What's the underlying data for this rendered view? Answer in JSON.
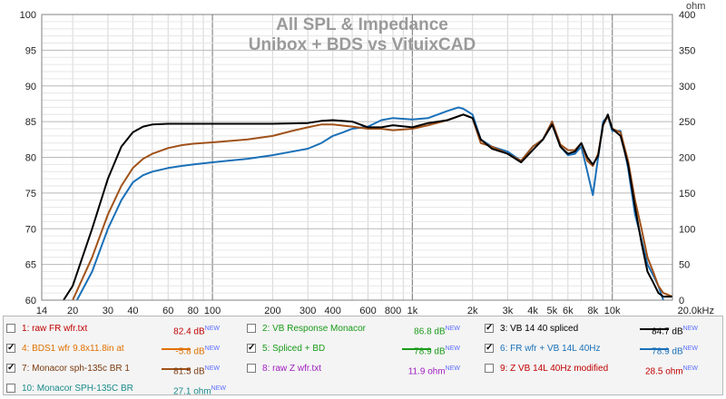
{
  "chart_data": {
    "type": "line",
    "title": "All SPL & Impedance",
    "subtitle": "Unibox + BDS vs VituixCAD",
    "x_scale": "log",
    "xlim": [
      14,
      20000
    ],
    "ylim": [
      60,
      100
    ],
    "y2lim": [
      0,
      400
    ],
    "y2label": "ohm",
    "grid": true,
    "x_tick_labels": [
      "14",
      "20",
      "30",
      "40",
      "60",
      "80",
      "100",
      "200",
      "300",
      "400",
      "600",
      "800",
      "1k",
      "2k",
      "3k",
      "4k",
      "5k",
      "6k",
      "8k",
      "10k",
      "20.0kHz"
    ],
    "y_tick_labels": [
      "60",
      "65",
      "70",
      "75",
      "80",
      "85",
      "90",
      "95",
      "100"
    ],
    "y2_tick_labels": [
      "0",
      "50",
      "100",
      "150",
      "200",
      "250",
      "300",
      "350",
      "400"
    ],
    "series": [
      {
        "name": "3: VB 14 40 spliced",
        "color": "#000000",
        "x": [
          18,
          20,
          25,
          30,
          35,
          40,
          45,
          50,
          60,
          70,
          100,
          150,
          200,
          300,
          350,
          400,
          500,
          600,
          700,
          800,
          1000,
          1200,
          1500,
          1800,
          2000,
          2200,
          2500,
          3000,
          3500,
          4000,
          4500,
          5000,
          5500,
          6000,
          6500,
          7000,
          7500,
          8000,
          8500,
          9000,
          9500,
          10000,
          11000,
          12000,
          13000,
          14000,
          15000,
          16000,
          17000,
          18000,
          20000
        ],
        "y": [
          60,
          62,
          70,
          77,
          81.5,
          83.5,
          84.3,
          84.6,
          84.7,
          84.7,
          84.7,
          84.7,
          84.7,
          84.8,
          85.1,
          85.2,
          85,
          84.2,
          84.2,
          84.5,
          84.2,
          84.8,
          85.2,
          86.0,
          85.5,
          82.5,
          81.2,
          80.5,
          79.3,
          81,
          82.5,
          84.6,
          81.5,
          80.5,
          80.8,
          82,
          80,
          79,
          80.2,
          84.6,
          86.0,
          84,
          83,
          79,
          73,
          68,
          64,
          62.5,
          61,
          60.5,
          60.5
        ]
      },
      {
        "name": "7: Monacor sph-135c BR 1",
        "color": "#a0521a",
        "x": [
          20,
          25,
          30,
          35,
          40,
          45,
          50,
          60,
          70,
          80,
          100,
          150,
          200,
          250,
          300,
          350,
          400,
          500,
          600,
          700,
          800,
          1000,
          1200,
          1500,
          1800,
          2000,
          2200,
          2500,
          3000,
          3500,
          4000,
          4500,
          5000,
          5500,
          6000,
          6500,
          7000,
          7500,
          8000,
          8500,
          9000,
          9500,
          10000,
          11000,
          12000,
          13000,
          14000,
          15000,
          16000,
          17000,
          18000,
          20000
        ],
        "y": [
          60,
          66,
          72,
          76,
          78.5,
          79.8,
          80.5,
          81.3,
          81.7,
          81.9,
          82.1,
          82.5,
          83,
          83.7,
          84.2,
          84.6,
          84.6,
          84.3,
          84,
          84,
          83.8,
          84,
          84.5,
          85.2,
          86.0,
          85.5,
          82,
          81.5,
          80.5,
          79.5,
          81.5,
          82.5,
          85,
          81.8,
          81,
          81,
          82,
          79.5,
          78.8,
          80.5,
          84.5,
          85.8,
          84,
          83.5,
          79.5,
          74,
          70,
          66,
          64,
          62,
          61,
          60.5
        ]
      },
      {
        "name": "6: FR wfr + VB 14L 40Hz",
        "color": "#1a70b8",
        "x": [
          21,
          25,
          30,
          35,
          40,
          45,
          50,
          60,
          70,
          80,
          100,
          150,
          200,
          250,
          300,
          350,
          400,
          450,
          500,
          600,
          700,
          800,
          1000,
          1200,
          1500,
          1700,
          1800,
          2000,
          2200,
          2500,
          3000,
          3500,
          4000,
          4500,
          5000,
          5500,
          6000,
          6500,
          7000,
          7500,
          8000,
          8500,
          9000,
          9500,
          10000,
          11000,
          12000,
          13000,
          14000,
          15000,
          16000,
          17000,
          18000
        ],
        "y": [
          60,
          64,
          70,
          74,
          76.5,
          77.5,
          78,
          78.5,
          78.8,
          79,
          79.3,
          79.8,
          80.3,
          80.8,
          81.2,
          82,
          83,
          83.5,
          84,
          84.3,
          85.2,
          85.5,
          85.3,
          85.5,
          86.5,
          87.0,
          86.8,
          86,
          82.5,
          81.5,
          80.8,
          79.5,
          81.5,
          82.5,
          85,
          81.5,
          80.3,
          80.5,
          81.5,
          78,
          74.7,
          80,
          85,
          85.7,
          83.7,
          83.7,
          78.5,
          72,
          68.5,
          65,
          63.5,
          62,
          60
        ]
      }
    ]
  },
  "legend": [
    {
      "num": "1",
      "name": "raw FR wfr.txt",
      "value": "82.4 dB",
      "tag": "NEW",
      "checked": false,
      "label_color": "#c00000",
      "value_color": "#c00000",
      "swatch": ""
    },
    {
      "num": "2",
      "name": "VB Response Monacor",
      "value": "86.8 dB",
      "tag": "NEW",
      "checked": false,
      "label_color": "#1a9a1a",
      "value_color": "#1a9a1a",
      "swatch": ""
    },
    {
      "num": "3",
      "name": "VB 14 40 spliced",
      "value": "84.7 dB",
      "tag": "NEW",
      "checked": true,
      "label_color": "#000000",
      "value_color": "#000000",
      "swatch": "#000000"
    },
    {
      "num": "4",
      "name": "BDS1 wfr 9.8x11.8in at",
      "value": "-5.8 dB",
      "tag": "NEW",
      "checked": true,
      "label_color": "#e07000",
      "value_color": "#e07000",
      "swatch": "#e07000"
    },
    {
      "num": "5",
      "name": "Spliced + BD",
      "value": "78.9 dB",
      "tag": "NEW",
      "checked": true,
      "label_color": "#1a9a1a",
      "value_color": "#1a9a1a",
      "swatch": "#1a9a1a"
    },
    {
      "num": "6",
      "name": "FR wfr + VB 14L 40Hz",
      "value": "78.9 dB",
      "tag": "NEW",
      "checked": true,
      "label_color": "#1a70b8",
      "value_color": "#1a70b8",
      "swatch": "#1a70b8"
    },
    {
      "num": "7",
      "name": "Monacor sph-135c BR 1",
      "value": "81.5 dB",
      "tag": "NEW",
      "checked": true,
      "label_color": "#7a3a10",
      "value_color": "#7a3a10",
      "swatch": "#a0521a"
    },
    {
      "num": "8",
      "name": "raw Z wfr.txt",
      "value": "11.9 ohm",
      "tag": "NEW",
      "checked": false,
      "label_color": "#a020c0",
      "value_color": "#a020c0",
      "swatch": ""
    },
    {
      "num": "9",
      "name": "Z VB 14L 40Hz modified",
      "value": "28.5 ohm",
      "tag": "NEW",
      "checked": false,
      "label_color": "#c00000",
      "value_color": "#c00000",
      "swatch": ""
    },
    {
      "num": "10",
      "name": "Monacor SPH-135C BR",
      "value": "27.1 ohm",
      "tag": "NEW",
      "checked": false,
      "label_color": "#1a8a8a",
      "value_color": "#1a8a8a",
      "swatch": ""
    }
  ]
}
